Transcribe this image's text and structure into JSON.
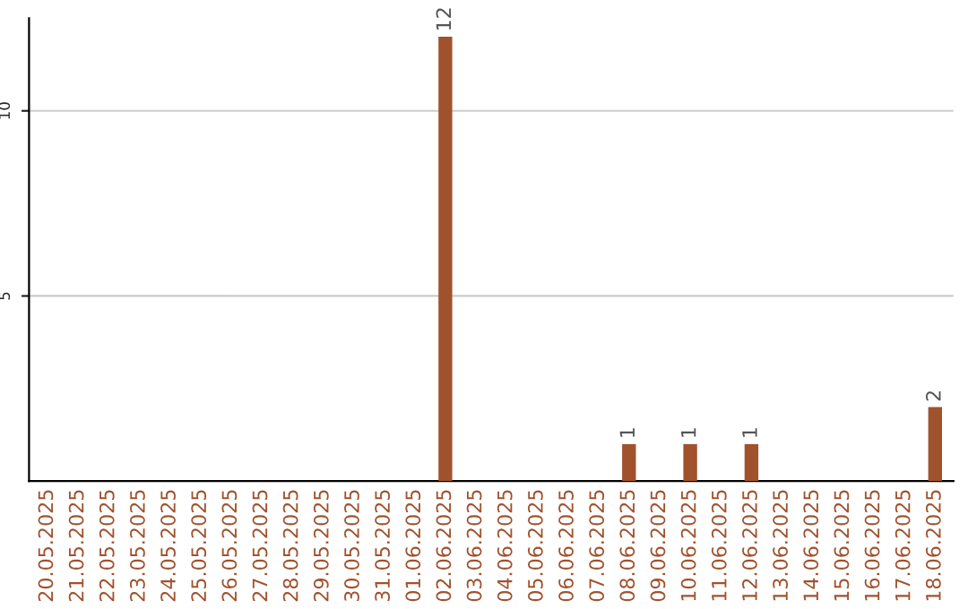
{
  "chart_data": {
    "type": "bar",
    "categories": [
      "20.05.2025",
      "21.05.2025",
      "22.05.2025",
      "23.05.2025",
      "24.05.2025",
      "25.05.2025",
      "26.05.2025",
      "27.05.2025",
      "28.05.2025",
      "29.05.2025",
      "30.05.2025",
      "31.05.2025",
      "01.06.2025",
      "02.06.2025",
      "03.06.2025",
      "04.06.2025",
      "05.06.2025",
      "06.06.2025",
      "07.06.2025",
      "08.06.2025",
      "09.06.2025",
      "10.06.2025",
      "11.06.2025",
      "12.06.2025",
      "13.06.2025",
      "14.06.2025",
      "15.06.2025",
      "16.06.2025",
      "17.06.2025",
      "18.06.2025"
    ],
    "values": [
      0,
      0,
      0,
      0,
      0,
      0,
      0,
      0,
      0,
      0,
      0,
      0,
      0,
      12,
      0,
      0,
      0,
      0,
      0,
      1,
      0,
      1,
      0,
      1,
      0,
      0,
      0,
      0,
      0,
      2
    ],
    "value_labels": [
      null,
      null,
      null,
      null,
      null,
      null,
      null,
      null,
      null,
      null,
      null,
      null,
      null,
      "12",
      null,
      null,
      null,
      null,
      null,
      "1",
      null,
      "1",
      null,
      "1",
      null,
      null,
      null,
      null,
      null,
      "2"
    ],
    "color": "#a0522d",
    "ylim": [
      0,
      12.5
    ],
    "yticks": [
      5,
      10
    ],
    "grid": "y"
  }
}
